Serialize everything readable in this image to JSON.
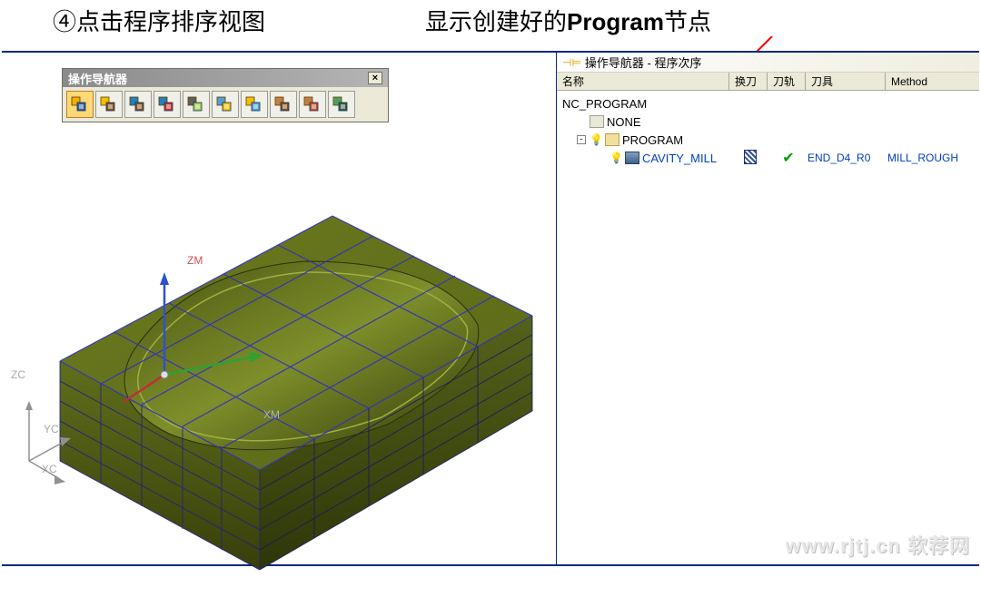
{
  "annotations": {
    "left": "④点击程序排序视图",
    "right_pre": "显示创建好的",
    "right_bold": "Program",
    "right_post": "节点"
  },
  "toolbar": {
    "title": "操作导航器",
    "close_symbol": "×",
    "icons": [
      {
        "name": "program-order-view",
        "selected": true,
        "color1": "#f0b000",
        "color2": "#3060a0"
      },
      {
        "name": "machine-tool-view",
        "selected": false,
        "color1": "#f0c000",
        "color2": "#805020"
      },
      {
        "name": "geometry-view",
        "selected": false,
        "color1": "#2080c0",
        "color2": "#805020"
      },
      {
        "name": "machining-method-view",
        "selected": false,
        "color1": "#2080c0",
        "color2": "#c03030"
      },
      {
        "name": "find-object",
        "selected": false,
        "color1": "#606060",
        "color2": "#a0d050"
      },
      {
        "name": "create-filter",
        "selected": false,
        "color1": "#50a0d0",
        "color2": "#f0c000"
      },
      {
        "name": "apply-filter",
        "selected": false,
        "color1": "#f0c000",
        "color2": "#50a0d0"
      },
      {
        "name": "expand-all",
        "selected": false,
        "color1": "#c08040",
        "color2": "#805020"
      },
      {
        "name": "collapse-all",
        "selected": false,
        "color1": "#c08040",
        "color2": "#c05030"
      },
      {
        "name": "export-browser",
        "selected": false,
        "color1": "#50a060",
        "color2": "#306040"
      }
    ]
  },
  "viewport": {
    "axis_labels": {
      "zm": "ZM",
      "xm": "XM",
      "zc": "ZC",
      "yc": "YC",
      "xc": "XC"
    },
    "model": {
      "body_color": "#6b7a1e",
      "body_shadow": "#495214",
      "pocket_color": "#7a8a28",
      "grid_color": "#3030c0",
      "wcs_x": "#c03030",
      "wcs_y": "#30a030",
      "wcs_z": "#3050d0"
    }
  },
  "navigator": {
    "title_prefix_icon": "📌",
    "title": "操作导航器 - 程序次序",
    "columns": {
      "c1": "名称",
      "c2": "换刀",
      "c3": "刀轨",
      "c4": "刀具",
      "c5": "Method"
    },
    "tree": {
      "root": "NC_PROGRAM",
      "none": "NONE",
      "program": "PROGRAM",
      "operation": {
        "name": "CAVITY_MILL",
        "tool": "END_D4_R0",
        "method": "MILL_ROUGH",
        "path_check": "✔"
      }
    },
    "expand_minus": "-"
  },
  "watermark": "www.rjtj.cn 软荐网",
  "arrow_color": "#ff0000"
}
